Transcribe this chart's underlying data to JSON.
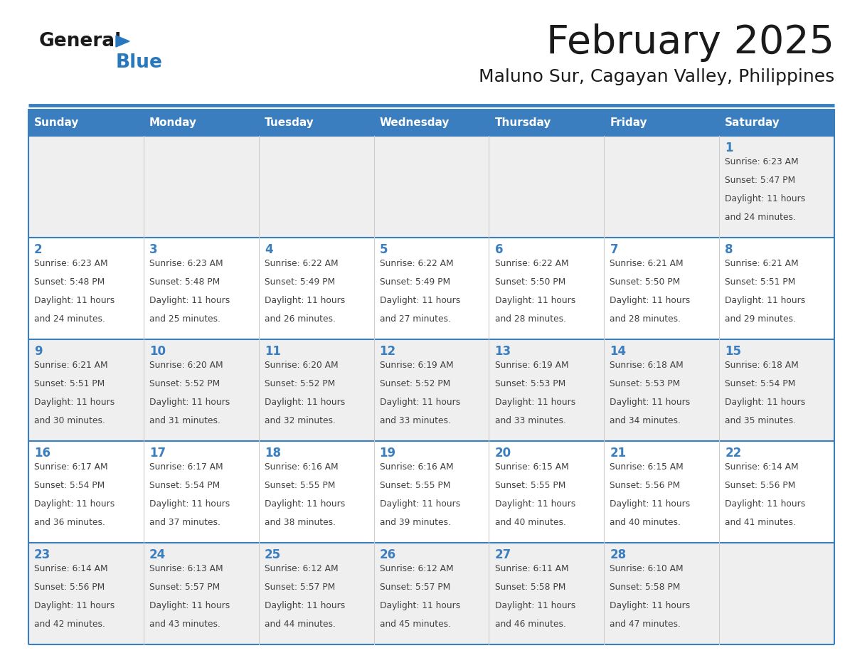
{
  "title": "February 2025",
  "subtitle": "Maluno Sur, Cagayan Valley, Philippines",
  "days_of_week": [
    "Sunday",
    "Monday",
    "Tuesday",
    "Wednesday",
    "Thursday",
    "Friday",
    "Saturday"
  ],
  "header_bg": "#3A7EBF",
  "header_text": "#FFFFFF",
  "row0_bg": "#EFEFEF",
  "row1_bg": "#FFFFFF",
  "row2_bg": "#EFEFEF",
  "row3_bg": "#FFFFFF",
  "row4_bg": "#EFEFEF",
  "separator_color": "#3A7EBF",
  "day_number_color": "#3A7EBF",
  "cell_text_color": "#404040",
  "title_color": "#1A1A1A",
  "subtitle_color": "#1A1A1A",
  "logo_general_color": "#1A1A1A",
  "logo_blue_color": "#2878BE",
  "calendar_data": [
    [
      null,
      null,
      null,
      null,
      null,
      null,
      {
        "day": 1,
        "sunrise": "6:23 AM",
        "sunset": "5:47 PM",
        "daylight": "11 hours and 24 minutes."
      }
    ],
    [
      {
        "day": 2,
        "sunrise": "6:23 AM",
        "sunset": "5:48 PM",
        "daylight": "11 hours and 24 minutes."
      },
      {
        "day": 3,
        "sunrise": "6:23 AM",
        "sunset": "5:48 PM",
        "daylight": "11 hours and 25 minutes."
      },
      {
        "day": 4,
        "sunrise": "6:22 AM",
        "sunset": "5:49 PM",
        "daylight": "11 hours and 26 minutes."
      },
      {
        "day": 5,
        "sunrise": "6:22 AM",
        "sunset": "5:49 PM",
        "daylight": "11 hours and 27 minutes."
      },
      {
        "day": 6,
        "sunrise": "6:22 AM",
        "sunset": "5:50 PM",
        "daylight": "11 hours and 28 minutes."
      },
      {
        "day": 7,
        "sunrise": "6:21 AM",
        "sunset": "5:50 PM",
        "daylight": "11 hours and 28 minutes."
      },
      {
        "day": 8,
        "sunrise": "6:21 AM",
        "sunset": "5:51 PM",
        "daylight": "11 hours and 29 minutes."
      }
    ],
    [
      {
        "day": 9,
        "sunrise": "6:21 AM",
        "sunset": "5:51 PM",
        "daylight": "11 hours and 30 minutes."
      },
      {
        "day": 10,
        "sunrise": "6:20 AM",
        "sunset": "5:52 PM",
        "daylight": "11 hours and 31 minutes."
      },
      {
        "day": 11,
        "sunrise": "6:20 AM",
        "sunset": "5:52 PM",
        "daylight": "11 hours and 32 minutes."
      },
      {
        "day": 12,
        "sunrise": "6:19 AM",
        "sunset": "5:52 PM",
        "daylight": "11 hours and 33 minutes."
      },
      {
        "day": 13,
        "sunrise": "6:19 AM",
        "sunset": "5:53 PM",
        "daylight": "11 hours and 33 minutes."
      },
      {
        "day": 14,
        "sunrise": "6:18 AM",
        "sunset": "5:53 PM",
        "daylight": "11 hours and 34 minutes."
      },
      {
        "day": 15,
        "sunrise": "6:18 AM",
        "sunset": "5:54 PM",
        "daylight": "11 hours and 35 minutes."
      }
    ],
    [
      {
        "day": 16,
        "sunrise": "6:17 AM",
        "sunset": "5:54 PM",
        "daylight": "11 hours and 36 minutes."
      },
      {
        "day": 17,
        "sunrise": "6:17 AM",
        "sunset": "5:54 PM",
        "daylight": "11 hours and 37 minutes."
      },
      {
        "day": 18,
        "sunrise": "6:16 AM",
        "sunset": "5:55 PM",
        "daylight": "11 hours and 38 minutes."
      },
      {
        "day": 19,
        "sunrise": "6:16 AM",
        "sunset": "5:55 PM",
        "daylight": "11 hours and 39 minutes."
      },
      {
        "day": 20,
        "sunrise": "6:15 AM",
        "sunset": "5:55 PM",
        "daylight": "11 hours and 40 minutes."
      },
      {
        "day": 21,
        "sunrise": "6:15 AM",
        "sunset": "5:56 PM",
        "daylight": "11 hours and 40 minutes."
      },
      {
        "day": 22,
        "sunrise": "6:14 AM",
        "sunset": "5:56 PM",
        "daylight": "11 hours and 41 minutes."
      }
    ],
    [
      {
        "day": 23,
        "sunrise": "6:14 AM",
        "sunset": "5:56 PM",
        "daylight": "11 hours and 42 minutes."
      },
      {
        "day": 24,
        "sunrise": "6:13 AM",
        "sunset": "5:57 PM",
        "daylight": "11 hours and 43 minutes."
      },
      {
        "day": 25,
        "sunrise": "6:12 AM",
        "sunset": "5:57 PM",
        "daylight": "11 hours and 44 minutes."
      },
      {
        "day": 26,
        "sunrise": "6:12 AM",
        "sunset": "5:57 PM",
        "daylight": "11 hours and 45 minutes."
      },
      {
        "day": 27,
        "sunrise": "6:11 AM",
        "sunset": "5:58 PM",
        "daylight": "11 hours and 46 minutes."
      },
      {
        "day": 28,
        "sunrise": "6:10 AM",
        "sunset": "5:58 PM",
        "daylight": "11 hours and 47 minutes."
      },
      null
    ]
  ],
  "row_bgs": [
    "#EFEFEF",
    "#FFFFFF",
    "#EFEFEF",
    "#FFFFFF",
    "#EFEFEF"
  ]
}
